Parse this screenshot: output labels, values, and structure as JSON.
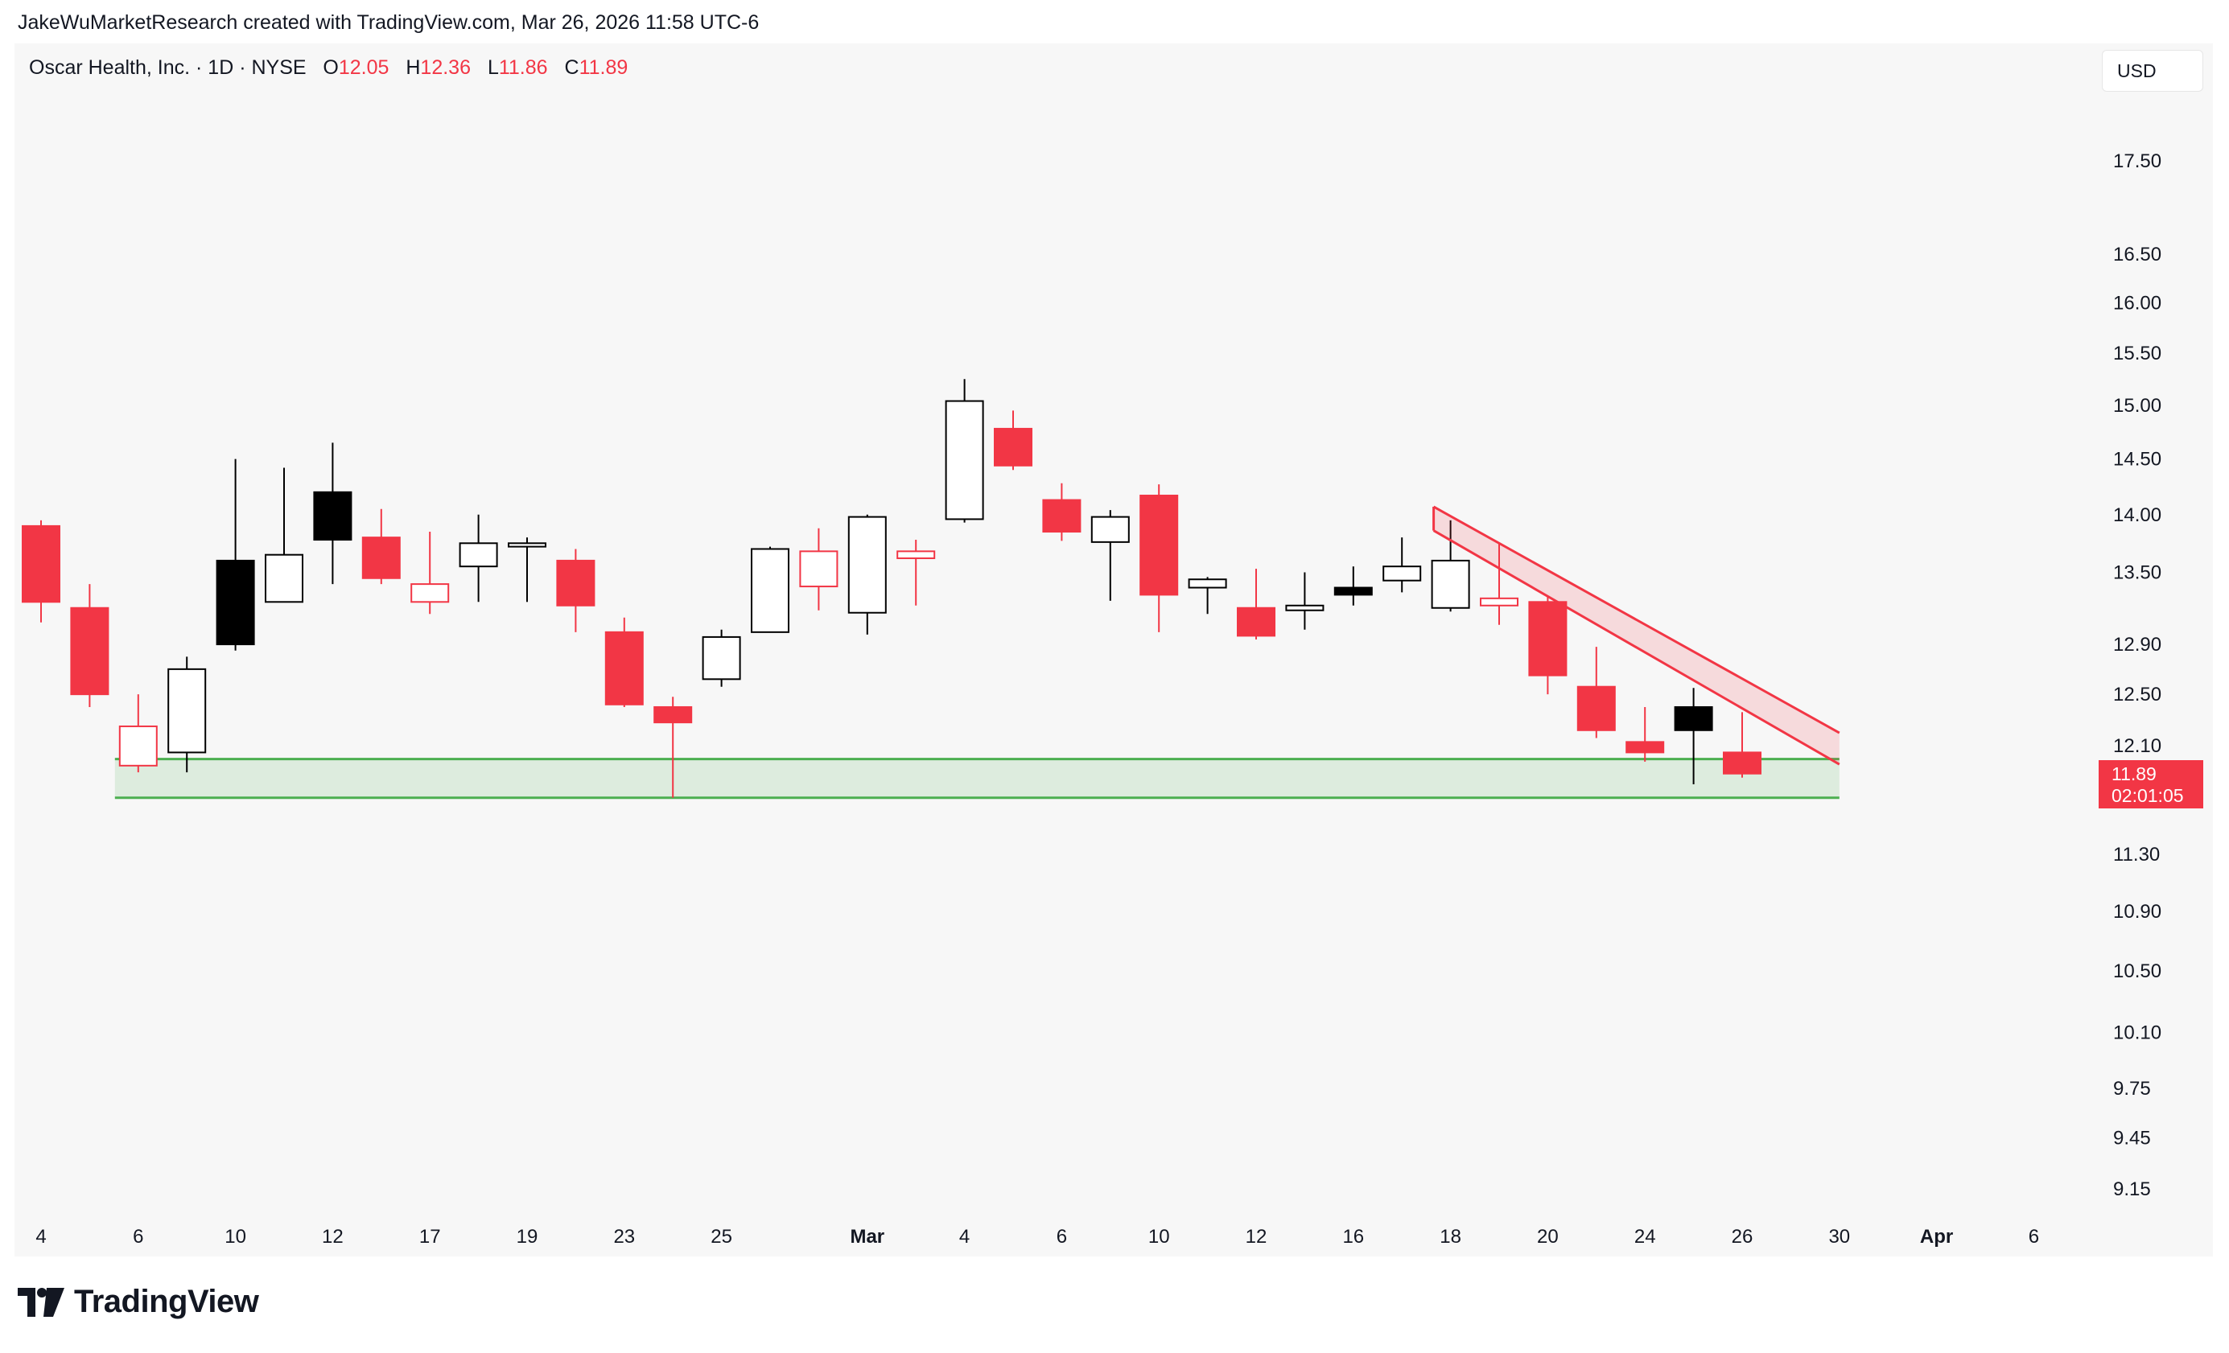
{
  "header": {
    "attribution": "JakeWuMarketResearch created with TradingView.com, Mar 26, 2026 11:58 UTC-6"
  },
  "legend": {
    "symbol": "Oscar Health, Inc. · 1D · NYSE",
    "open_label": "O",
    "open": "12.05",
    "high_label": "H",
    "high": "12.36",
    "low_label": "L",
    "low": "11.86",
    "close_label": "C",
    "close": "11.89"
  },
  "currency_button": "USD",
  "price_tag": {
    "price": "11.89",
    "countdown": "02:01:05"
  },
  "footer": {
    "brand": "TradingView",
    "logo_icon": "tradingview-logo-icon"
  },
  "colors": {
    "up_hollow": "#000000",
    "down": "#f23645",
    "black_fill": "#000000",
    "support_zone": "#4caf50",
    "channel": "#f23645"
  },
  "chart_data": {
    "type": "candlestick",
    "y_scale": "log",
    "ylim": [
      8.9,
      18.6
    ],
    "y_ticks": [
      "17.50",
      "16.50",
      "16.00",
      "15.50",
      "15.00",
      "14.50",
      "14.00",
      "13.50",
      "12.90",
      "12.50",
      "12.10",
      "11.30",
      "10.90",
      "10.50",
      "10.10",
      "9.75",
      "9.45",
      "9.15"
    ],
    "x_ticks": [
      {
        "label": "4",
        "bar": 0
      },
      {
        "label": "6",
        "bar": 2
      },
      {
        "label": "10",
        "bar": 4
      },
      {
        "label": "12",
        "bar": 6
      },
      {
        "label": "17",
        "bar": 8
      },
      {
        "label": "19",
        "bar": 10
      },
      {
        "label": "23",
        "bar": 12
      },
      {
        "label": "25",
        "bar": 14
      },
      {
        "label": "Mar",
        "bar": 17,
        "bold": true
      },
      {
        "label": "4",
        "bar": 19
      },
      {
        "label": "6",
        "bar": 21
      },
      {
        "label": "10",
        "bar": 23
      },
      {
        "label": "12",
        "bar": 25
      },
      {
        "label": "16",
        "bar": 27
      },
      {
        "label": "18",
        "bar": 29
      },
      {
        "label": "20",
        "bar": 31
      },
      {
        "label": "24",
        "bar": 33
      },
      {
        "label": "26",
        "bar": 35
      },
      {
        "label": "30",
        "bar": 37
      },
      {
        "label": "Apr",
        "bar": 39,
        "bold": true
      },
      {
        "label": "6",
        "bar": 41
      }
    ],
    "candles": [
      {
        "o": 13.9,
        "h": 13.95,
        "l": 13.08,
        "c": 13.25,
        "style": "down"
      },
      {
        "o": 13.2,
        "h": 13.4,
        "l": 12.4,
        "c": 12.5,
        "style": "down"
      },
      {
        "o": 12.25,
        "h": 12.5,
        "l": 11.9,
        "c": 11.95,
        "style": "down-hollow"
      },
      {
        "o": 12.05,
        "h": 12.8,
        "l": 11.9,
        "c": 12.7,
        "style": "up-hollow"
      },
      {
        "o": 12.9,
        "h": 14.5,
        "l": 12.85,
        "c": 13.6,
        "style": "black"
      },
      {
        "o": 13.25,
        "h": 14.42,
        "l": 13.25,
        "c": 13.65,
        "style": "up-hollow"
      },
      {
        "o": 13.78,
        "h": 14.65,
        "l": 13.4,
        "c": 14.2,
        "style": "black"
      },
      {
        "o": 13.8,
        "h": 14.05,
        "l": 13.4,
        "c": 13.45,
        "style": "down"
      },
      {
        "o": 13.4,
        "h": 13.85,
        "l": 13.15,
        "c": 13.25,
        "style": "down-hollow"
      },
      {
        "o": 13.55,
        "h": 14.0,
        "l": 13.25,
        "c": 13.75,
        "style": "up-hollow"
      },
      {
        "o": 13.75,
        "h": 13.8,
        "l": 13.25,
        "c": 13.72,
        "style": "up-hollow"
      },
      {
        "o": 13.6,
        "h": 13.7,
        "l": 13.0,
        "c": 13.22,
        "style": "down"
      },
      {
        "o": 13.0,
        "h": 13.12,
        "l": 12.4,
        "c": 12.42,
        "style": "down"
      },
      {
        "o": 12.4,
        "h": 12.48,
        "l": 11.71,
        "c": 12.28,
        "style": "down"
      },
      {
        "o": 12.62,
        "h": 13.02,
        "l": 12.56,
        "c": 12.96,
        "style": "up-hollow"
      },
      {
        "o": 13.0,
        "h": 13.72,
        "l": 13.0,
        "c": 13.7,
        "style": "up-hollow"
      },
      {
        "o": 13.38,
        "h": 13.88,
        "l": 13.18,
        "c": 13.68,
        "style": "down-hollow"
      },
      {
        "o": 13.16,
        "h": 14.0,
        "l": 12.98,
        "c": 13.98,
        "style": "up-hollow"
      },
      {
        "o": 13.68,
        "h": 13.78,
        "l": 13.22,
        "c": 13.62,
        "style": "down-hollow"
      },
      {
        "o": 13.96,
        "h": 15.25,
        "l": 13.93,
        "c": 15.04,
        "style": "up-hollow"
      },
      {
        "o": 14.78,
        "h": 14.95,
        "l": 14.4,
        "c": 14.44,
        "style": "down"
      },
      {
        "o": 14.13,
        "h": 14.28,
        "l": 13.77,
        "c": 13.85,
        "style": "down"
      },
      {
        "o": 13.76,
        "h": 14.04,
        "l": 13.26,
        "c": 13.98,
        "style": "up-hollow"
      },
      {
        "o": 14.17,
        "h": 14.27,
        "l": 13.0,
        "c": 13.31,
        "style": "down"
      },
      {
        "o": 13.37,
        "h": 13.46,
        "l": 13.15,
        "c": 13.44,
        "style": "up-hollow"
      },
      {
        "o": 13.2,
        "h": 13.53,
        "l": 12.94,
        "c": 12.97,
        "style": "down"
      },
      {
        "o": 13.18,
        "h": 13.5,
        "l": 13.02,
        "c": 13.22,
        "style": "up-hollow"
      },
      {
        "o": 13.31,
        "h": 13.55,
        "l": 13.22,
        "c": 13.37,
        "style": "black"
      },
      {
        "o": 13.43,
        "h": 13.8,
        "l": 13.33,
        "c": 13.55,
        "style": "up-hollow"
      },
      {
        "o": 13.2,
        "h": 13.95,
        "l": 13.17,
        "c": 13.6,
        "style": "up-hollow"
      },
      {
        "o": 13.28,
        "h": 13.75,
        "l": 13.06,
        "c": 13.22,
        "style": "down-hollow"
      },
      {
        "o": 13.25,
        "h": 13.3,
        "l": 12.5,
        "c": 12.65,
        "style": "down"
      },
      {
        "o": 12.56,
        "h": 12.88,
        "l": 12.16,
        "c": 12.22,
        "style": "down"
      },
      {
        "o": 12.13,
        "h": 12.4,
        "l": 11.98,
        "c": 12.05,
        "style": "down"
      },
      {
        "o": 12.22,
        "h": 12.55,
        "l": 11.81,
        "c": 12.4,
        "style": "black"
      },
      {
        "o": 12.05,
        "h": 12.36,
        "l": 11.86,
        "c": 11.89,
        "style": "down"
      }
    ],
    "annotations": {
      "support_zone": {
        "bar_start": 2,
        "bar_end": 37,
        "top": 12.0,
        "bottom": 11.71
      },
      "descending_channel": {
        "bar_start": 29,
        "bar_end": 37,
        "upper_start": 14.07,
        "upper_end": 12.2,
        "lower_start": 13.86,
        "lower_end": 11.96
      }
    }
  }
}
